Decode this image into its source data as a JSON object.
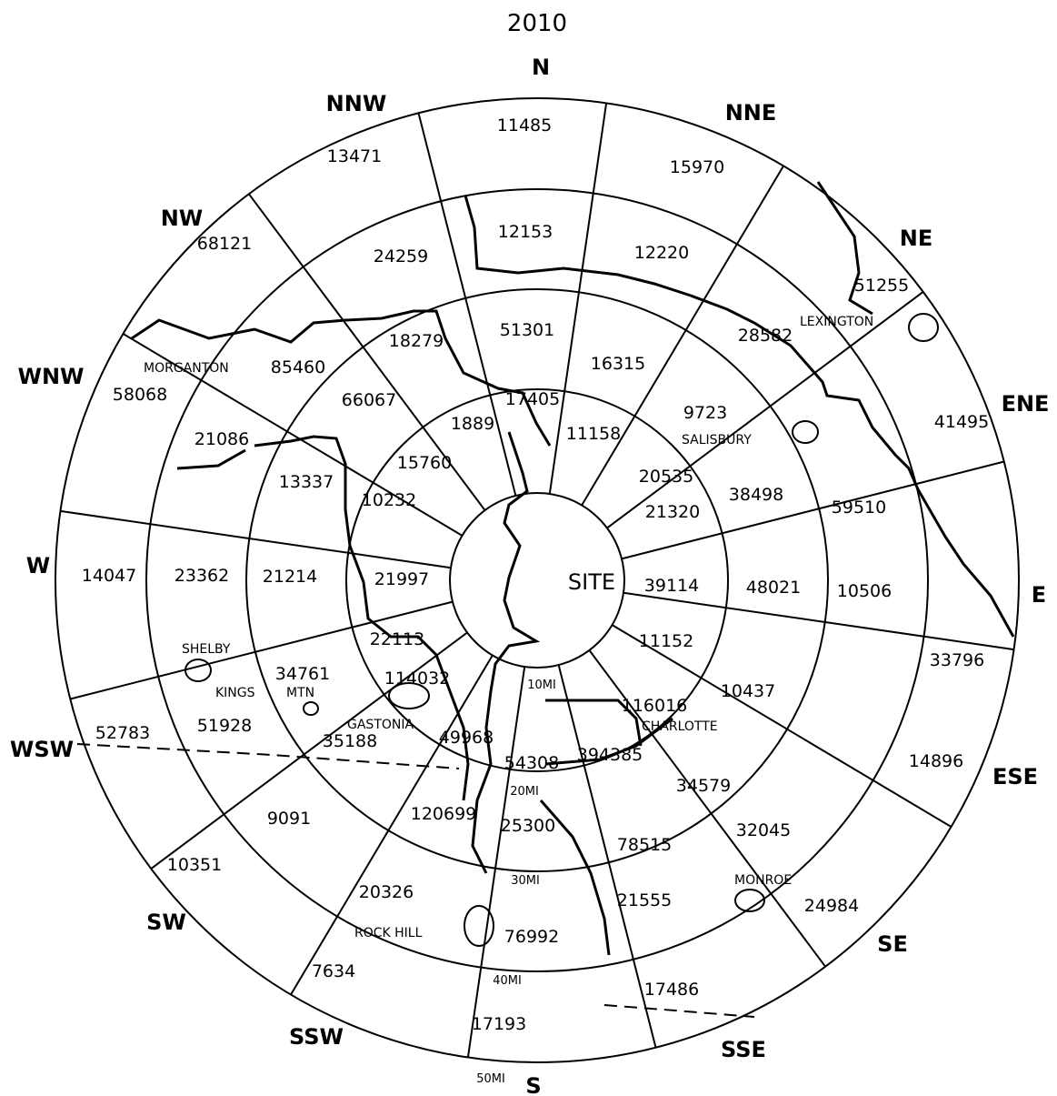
{
  "title": "2010",
  "center_label": "SITE",
  "directions": [
    "N",
    "NNE",
    "NE",
    "ENE",
    "E",
    "ESE",
    "SE",
    "SSE",
    "S",
    "SSW",
    "SW",
    "WSW",
    "W",
    "WNW",
    "NW",
    "NNW"
  ],
  "ring_labels": [
    "10MI",
    "20MI",
    "30MI",
    "40MI",
    "50MI"
  ],
  "populations": [
    [
      "17405",
      "1889",
      "12153",
      "11485"
    ],
    [
      "11158",
      "16315",
      "12220",
      "15970"
    ],
    [
      "20535",
      "9723",
      "28582",
      "51255"
    ],
    [
      "21320",
      "38498",
      "59510",
      "41495"
    ],
    [
      "39114",
      "48021",
      "10506",
      ""
    ],
    [
      "11152",
      "10437",
      "14896",
      "33796"
    ],
    [
      "116016",
      "34579",
      "32045",
      "24984"
    ],
    [
      "394385",
      "78515",
      "21555",
      "17486"
    ],
    [
      "54308",
      "25300",
      "76992",
      "17193"
    ],
    [
      "120699",
      "20326",
      "7634",
      ""
    ],
    [
      "49968",
      "9091",
      "10351",
      ""
    ],
    [
      "114032",
      "35188",
      "51928",
      "52783"
    ],
    [
      "21997",
      "21214",
      "23362",
      "14047"
    ],
    [
      "22113",
      "34761",
      "",
      ""
    ],
    [
      "15760",
      "13337",
      "21086",
      "58068"
    ],
    [
      "10232",
      "66067",
      "85460",
      "68121"
    ],
    [
      "18279",
      "24259",
      "13471",
      ""
    ],
    [
      "51301",
      "",
      "",
      ""
    ]
  ],
  "towns": [
    "MORGANTON",
    "SALISBURY",
    "LEXINGTON",
    "SHELBY",
    "KINGS",
    "MTN",
    "GASTONIA",
    "CHARLOTTE",
    "ROCK HILL",
    "MONROE"
  ]
}
